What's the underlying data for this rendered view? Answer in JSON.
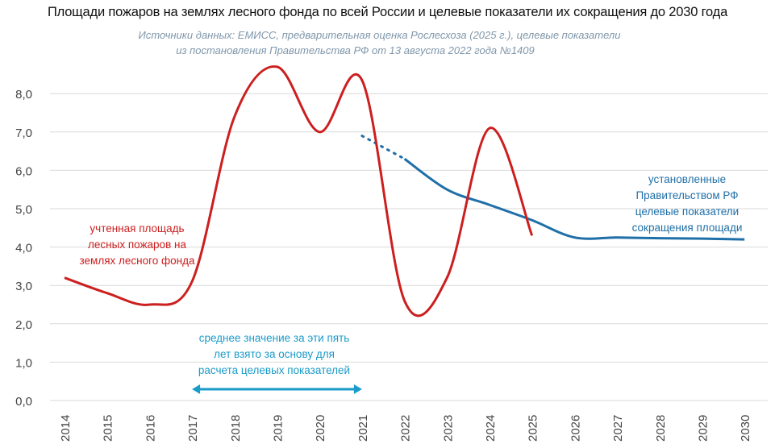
{
  "chart_data": {
    "type": "line",
    "title": "Площади пожаров на землях лесного фонда по всей России и целевые показатели их сокращения до 2030 года",
    "subtitle": [
      "Источники данных: ЕМИСС, предварительная оценка Рослесхоза (2025 г.), целевые показатели",
      "из постановления Правительства РФ от 13 августа 2022 года №1409"
    ],
    "x": [
      "2014",
      "2015",
      "2016",
      "2017",
      "2018",
      "2019",
      "2020",
      "2021",
      "2022",
      "2023",
      "2024",
      "2025",
      "2026",
      "2027",
      "2028",
      "2029",
      "2030"
    ],
    "y_ticks": [
      "0,0",
      "1,0",
      "2,0",
      "3,0",
      "4,0",
      "5,0",
      "6,0",
      "7,0",
      "8,0"
    ],
    "ylim": [
      0,
      9
    ],
    "grid": true,
    "series": [
      {
        "name": "учтенная площадь лесных пожаров на землях лесного фонда",
        "color": "#cc1f1f",
        "x": [
          "2014",
          "2015",
          "2016",
          "2017",
          "2018",
          "2019",
          "2020",
          "2021",
          "2022",
          "2023",
          "2024",
          "2025"
        ],
        "values": [
          3.2,
          2.8,
          2.5,
          3.1,
          7.4,
          8.7,
          7.0,
          8.35,
          2.6,
          3.2,
          7.1,
          4.3
        ]
      },
      {
        "name": "установленные Правительством РФ целевые показатели сокращения площади",
        "color": "#1f6fa8",
        "x": [
          "2021",
          "2022",
          "2023",
          "2024",
          "2025",
          "2026",
          "2027",
          "2028",
          "2029",
          "2030"
        ],
        "values": [
          6.9,
          6.3,
          5.5,
          5.1,
          4.7,
          4.25,
          4.25,
          4.23,
          4.22,
          4.2
        ],
        "dotted_segment": [
          "2021",
          "2022"
        ]
      }
    ],
    "annotations": {
      "red": [
        "учтенная площадь",
        "лесных пожаров на",
        "землях лесного фонда"
      ],
      "blue": [
        "установленные",
        "Правительством РФ",
        "целевые показатели",
        "сокращения площади"
      ],
      "cyan": [
        "среднее значение за эти пять",
        "лет взято за основу для",
        "расчета целевых показателей"
      ],
      "base_range": [
        "2017",
        "2021"
      ]
    },
    "colors": {
      "red": "#cc1f1f",
      "blue": "#1f6fa8",
      "cyan": "#1a9bc9"
    }
  }
}
